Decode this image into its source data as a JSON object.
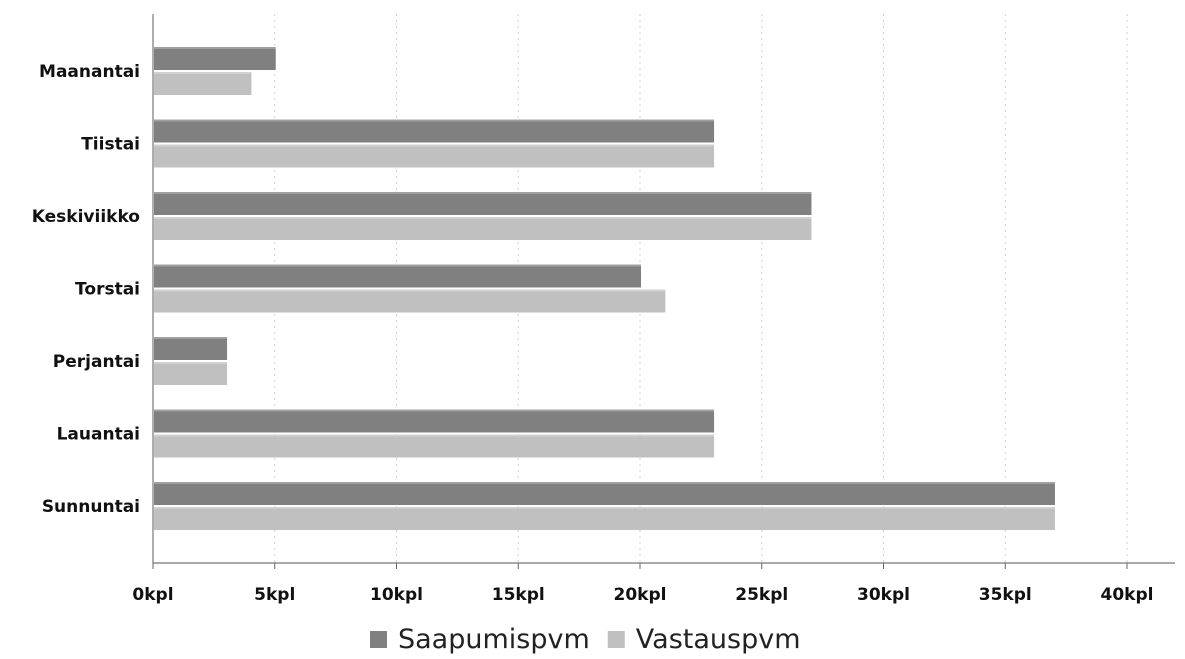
{
  "chart_data": {
    "type": "bar",
    "orientation": "horizontal",
    "categories": [
      "Maanantai",
      "Tiistai",
      "Keskiviikko",
      "Torstai",
      "Perjantai",
      "Lauantai",
      "Sunnuntai"
    ],
    "series": [
      {
        "name": "Saapumispvm",
        "values": [
          5,
          23,
          27,
          20,
          3,
          23,
          37
        ],
        "color": "#808080"
      },
      {
        "name": "Vastauspvm",
        "values": [
          4,
          23,
          27,
          21,
          3,
          23,
          37
        ],
        "color": "#c0c0c0"
      }
    ],
    "x_ticks": [
      "0kpl",
      "5kpl",
      "10kpl",
      "15kpl",
      "20kpl",
      "25kpl",
      "30kpl",
      "35kpl",
      "40kpl"
    ],
    "xlim": [
      0,
      42
    ],
    "grid": "vertical-dotted",
    "legend_position": "bottom-center",
    "title": "",
    "xlabel": "",
    "ylabel": ""
  }
}
